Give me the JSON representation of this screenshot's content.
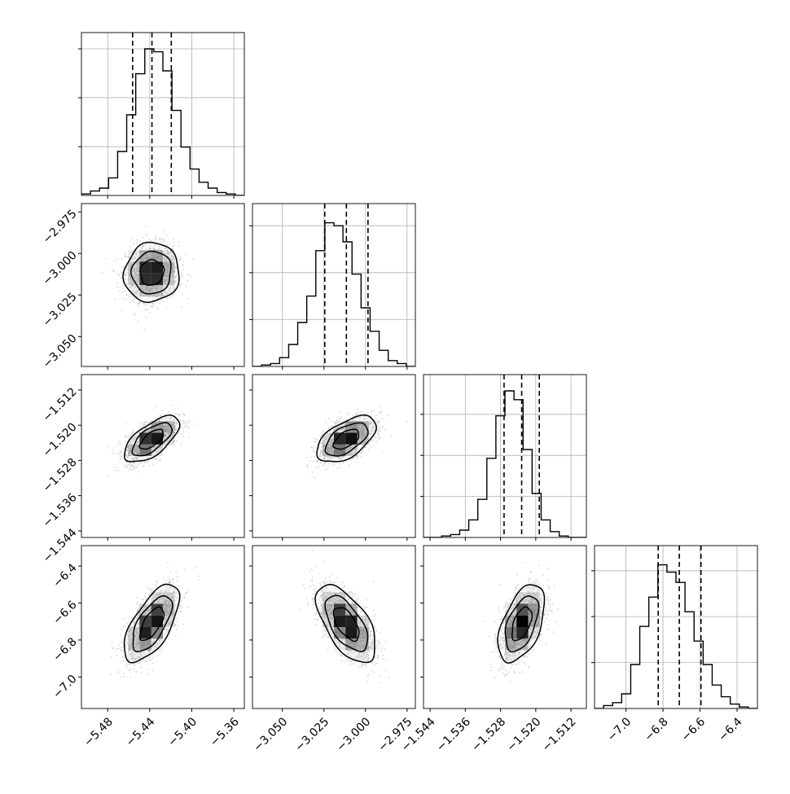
{
  "chart_data": {
    "type": "corner",
    "parameters": [
      {
        "range": [
          -5.505,
          -5.35
        ],
        "ticks": [
          -5.48,
          -5.44,
          -5.4,
          -5.36
        ],
        "tick_labels": [
          "−5.48",
          "−5.44",
          "−5.40",
          "−5.36"
        ],
        "mean": -5.438,
        "sigma": 0.0125,
        "quantiles": [
          -5.4563,
          -5.4379,
          -5.4195
        ],
        "hist_norm": [
          0.01,
          0.03,
          0.05,
          0.12,
          0.3,
          0.55,
          0.83,
          1.0,
          0.98,
          0.85,
          0.58,
          0.33,
          0.18,
          0.09,
          0.05,
          0.02,
          0.01,
          0.0
        ],
        "hist_yticks": [
          0.333,
          0.667,
          1.0
        ]
      },
      {
        "range": [
          -3.068,
          -2.97
        ],
        "ticks": [
          -3.05,
          -3.025,
          -3.0,
          -2.975
        ],
        "tick_labels": [
          "−3.050",
          "−3.025",
          "−3.000",
          "−2.975"
        ],
        "mean": -3.0115,
        "sigma": 0.0085,
        "quantiles": [
          -3.0245,
          -3.0115,
          -2.9985
        ],
        "hist_norm": [
          0.0,
          0.01,
          0.02,
          0.06,
          0.15,
          0.3,
          0.48,
          0.79,
          0.98,
          0.96,
          0.85,
          0.63,
          0.4,
          0.24,
          0.11,
          0.04,
          0.02,
          0.0
        ],
        "hist_yticks": [
          0.32,
          0.64,
          0.96
        ]
      },
      {
        "range": [
          -1.5455,
          -1.5085
        ],
        "ticks": [
          -1.544,
          -1.536,
          -1.528,
          -1.52,
          -1.512
        ],
        "tick_labels": [
          "−1.544",
          "−1.536",
          "−1.528",
          "−1.520",
          "−1.512"
        ],
        "mean": -1.5232,
        "sigma": 0.0025,
        "quantiles": [
          -1.5272,
          -1.5232,
          -1.5192
        ],
        "hist_norm": [
          0.0,
          0.0,
          0.01,
          0.02,
          0.05,
          0.12,
          0.26,
          0.54,
          0.83,
          1.0,
          0.94,
          0.6,
          0.3,
          0.12,
          0.04,
          0.01,
          0.0,
          0.0
        ],
        "hist_yticks": [
          0.28,
          0.56,
          0.84
        ]
      },
      {
        "range": [
          -7.17,
          -6.29
        ],
        "ticks": [
          -7.0,
          -6.8,
          -6.6,
          -6.4
        ],
        "tick_labels": [
          "−7.0",
          "−6.8",
          "−6.6",
          "−6.4"
        ],
        "mean": -6.712,
        "sigma": 0.1,
        "quantiles": [
          -6.826,
          -6.712,
          -6.595
        ],
        "hist_norm": [
          0.0,
          0.02,
          0.04,
          0.1,
          0.3,
          0.56,
          0.76,
          0.98,
          0.93,
          0.86,
          0.66,
          0.46,
          0.3,
          0.16,
          0.08,
          0.03,
          0.01,
          0.0
        ],
        "hist_yticks": [
          0.313,
          0.627,
          0.94
        ]
      }
    ],
    "correlations": {
      "1-0": 0.05,
      "2-0": 0.65,
      "2-1": 0.55,
      "3-0": 0.65,
      "3-1": -0.6,
      "3-2": 0.5
    },
    "grid": true
  }
}
